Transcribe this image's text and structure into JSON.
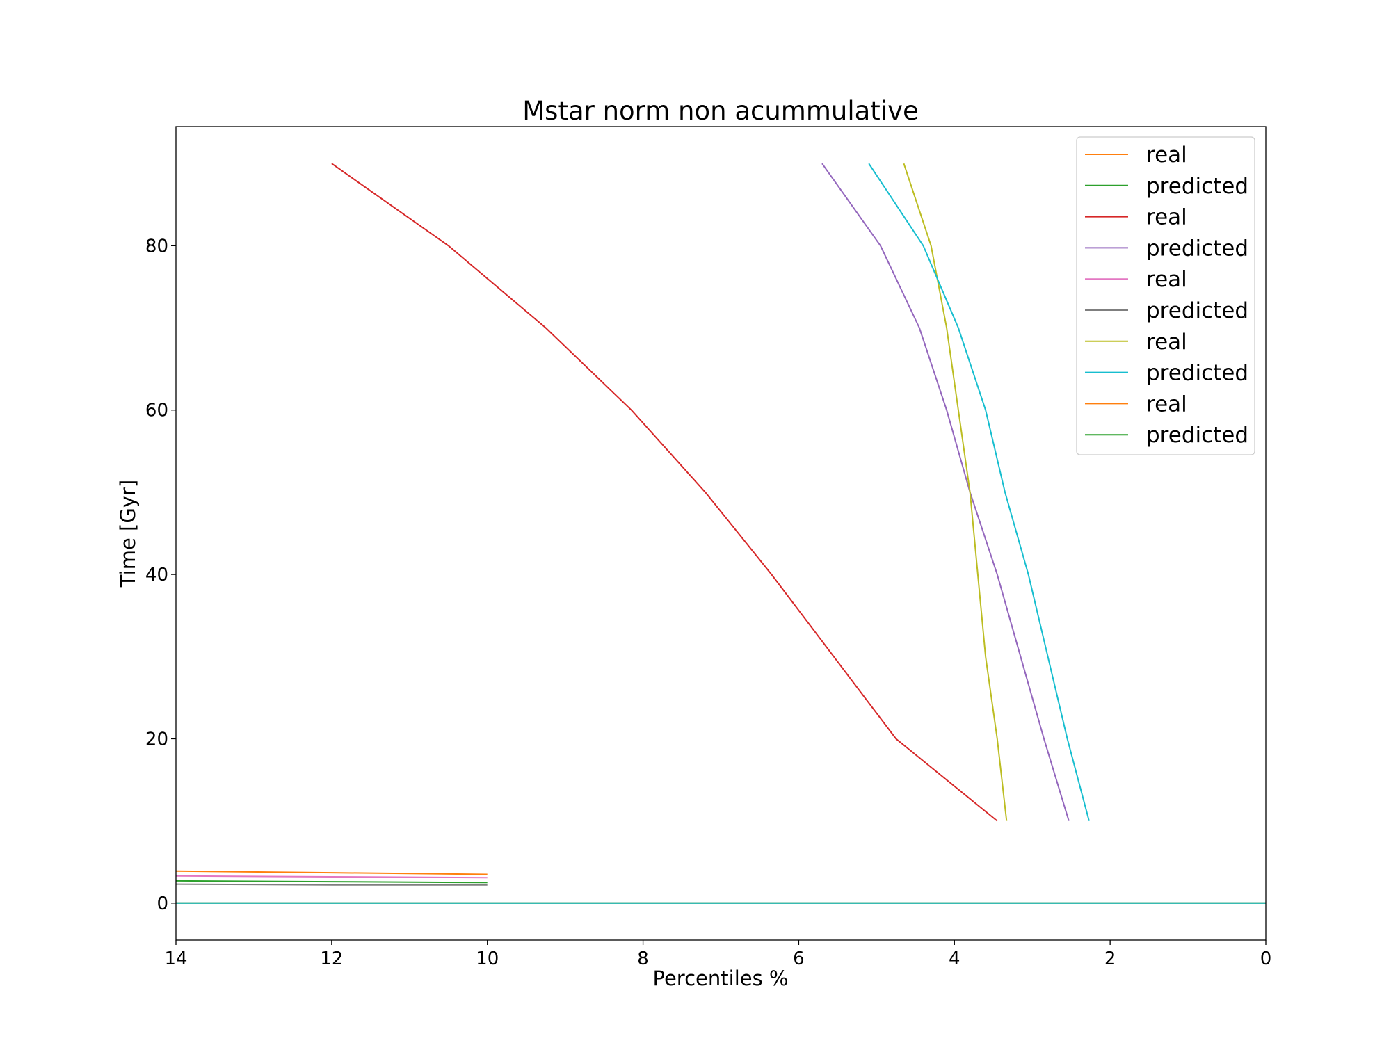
{
  "chart_data": {
    "type": "line",
    "title": "Mstar norm non acummulative",
    "xlabel": "Percentiles %",
    "ylabel": "Time [Gyr]",
    "xlim": [
      14,
      0
    ],
    "ylim": [
      -4.5,
      94.5
    ],
    "x_ticks": [
      14,
      12,
      10,
      8,
      6,
      4,
      2,
      0
    ],
    "y_ticks": [
      0,
      20,
      40,
      60,
      80
    ],
    "x_tick_labels": [
      "14",
      "12",
      "10",
      "8",
      "6",
      "4",
      "2",
      "0"
    ],
    "y_tick_labels": [
      "0",
      "20",
      "40",
      "60",
      "80"
    ],
    "grid": false,
    "legend_position": "top-right",
    "colors": {
      "orange": "#ff7f0e",
      "green": "#2ca02c",
      "red": "#d62728",
      "purple": "#9467bd",
      "pink": "#e377c2",
      "gray": "#7f7f7f",
      "olive": "#bcbd22",
      "cyan": "#17becf"
    },
    "legend": [
      {
        "label": "real",
        "color": "#ff7f0e"
      },
      {
        "label": "predicted",
        "color": "#2ca02c"
      },
      {
        "label": "real",
        "color": "#d62728"
      },
      {
        "label": "predicted",
        "color": "#9467bd"
      },
      {
        "label": "real",
        "color": "#e377c2"
      },
      {
        "label": "predicted",
        "color": "#7f7f7f"
      },
      {
        "label": "real",
        "color": "#bcbd22"
      },
      {
        "label": "predicted",
        "color": "#17becf"
      },
      {
        "label": "real",
        "color": "#ff7f0e"
      },
      {
        "label": "predicted",
        "color": "#2ca02c"
      }
    ],
    "series": [
      {
        "color": "#ff7f0e",
        "points": [
          [
            14,
            3.9
          ],
          [
            12,
            3.7
          ],
          [
            10,
            3.5
          ]
        ]
      },
      {
        "color": "#2ca02c",
        "points": [
          [
            14,
            2.7
          ],
          [
            12,
            2.6
          ],
          [
            10,
            2.5
          ]
        ]
      },
      {
        "color": "#d62728",
        "points": [
          [
            12.0,
            90
          ],
          [
            10.5,
            80
          ],
          [
            9.25,
            70
          ],
          [
            8.15,
            60
          ],
          [
            7.2,
            50
          ],
          [
            6.35,
            40
          ],
          [
            5.55,
            30
          ],
          [
            4.75,
            20
          ],
          [
            3.45,
            10
          ]
        ]
      },
      {
        "color": "#9467bd",
        "points": [
          [
            5.7,
            90
          ],
          [
            4.95,
            80
          ],
          [
            4.45,
            70
          ],
          [
            4.1,
            60
          ],
          [
            3.8,
            50
          ],
          [
            3.45,
            40
          ],
          [
            3.15,
            30
          ],
          [
            2.85,
            20
          ],
          [
            2.53,
            10
          ]
        ]
      },
      {
        "color": "#e377c2",
        "points": [
          [
            14,
            3.3
          ],
          [
            12,
            3.2
          ],
          [
            10,
            3.1
          ]
        ]
      },
      {
        "color": "#7f7f7f",
        "points": [
          [
            14,
            2.3
          ],
          [
            12,
            2.2
          ],
          [
            10,
            2.2
          ]
        ]
      },
      {
        "color": "#bcbd22",
        "points": [
          [
            4.65,
            90
          ],
          [
            4.3,
            80
          ],
          [
            4.1,
            70
          ],
          [
            3.95,
            60
          ],
          [
            3.8,
            50
          ],
          [
            3.7,
            40
          ],
          [
            3.6,
            30
          ],
          [
            3.45,
            20
          ],
          [
            3.33,
            10
          ]
        ]
      },
      {
        "color": "#17becf",
        "points": [
          [
            5.1,
            90
          ],
          [
            4.4,
            80
          ],
          [
            3.95,
            70
          ],
          [
            3.6,
            60
          ],
          [
            3.35,
            50
          ],
          [
            3.05,
            40
          ],
          [
            2.8,
            30
          ],
          [
            2.55,
            20
          ],
          [
            2.27,
            10
          ]
        ]
      },
      {
        "color": "#ff7f0e",
        "points": [
          [
            14,
            0
          ],
          [
            0,
            0
          ]
        ]
      },
      {
        "color": "#2ca02c",
        "points": [
          [
            14,
            0
          ],
          [
            0,
            0
          ]
        ]
      },
      {
        "color": "#17becf",
        "points": [
          [
            14,
            0
          ],
          [
            0,
            0
          ]
        ]
      }
    ]
  }
}
